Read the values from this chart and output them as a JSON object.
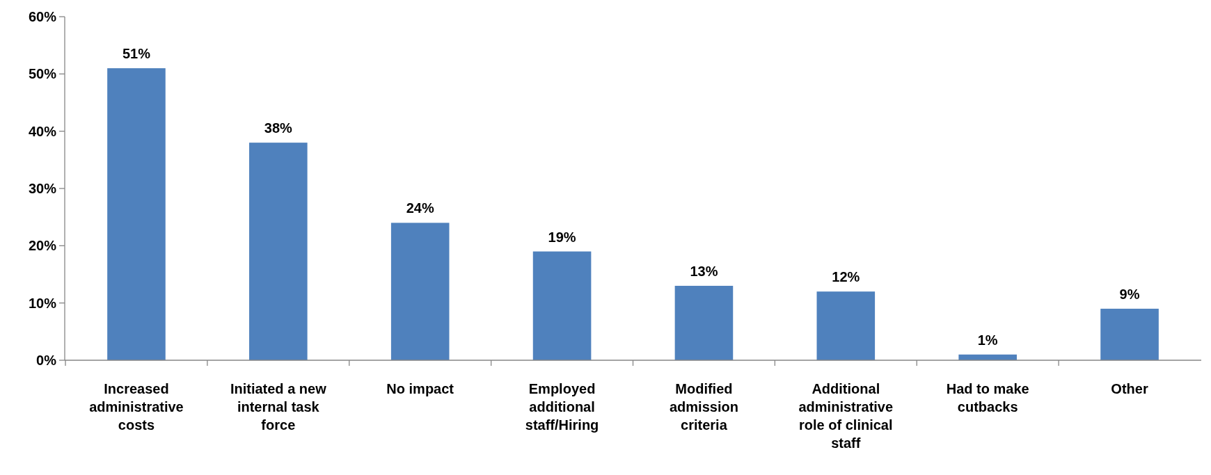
{
  "chart_data": {
    "type": "bar",
    "categories": [
      "Increased administrative costs",
      "Initiated a new internal task force",
      "No impact",
      "Employed additional staff/Hiring",
      "Modified admission criteria",
      "Additional administrative role of clinical staff",
      "Had to make cutbacks",
      "Other"
    ],
    "values": [
      51,
      38,
      24,
      19,
      13,
      12,
      1,
      9
    ],
    "color": "#4f81bd",
    "ylim": [
      0,
      60
    ],
    "yticks": [
      {
        "value": 0,
        "label": "0%"
      },
      {
        "value": 10,
        "label": "10%"
      },
      {
        "value": 20,
        "label": "20%"
      },
      {
        "value": 30,
        "label": "30%"
      },
      {
        "value": 40,
        "label": "40%"
      },
      {
        "value": 50,
        "label": "50%"
      },
      {
        "value": 60,
        "label": "60%"
      }
    ],
    "value_labels": [
      "51%",
      "38%",
      "24%",
      "19%",
      "13%",
      "12%",
      "1%",
      "9%"
    ],
    "data_labels": false
  }
}
